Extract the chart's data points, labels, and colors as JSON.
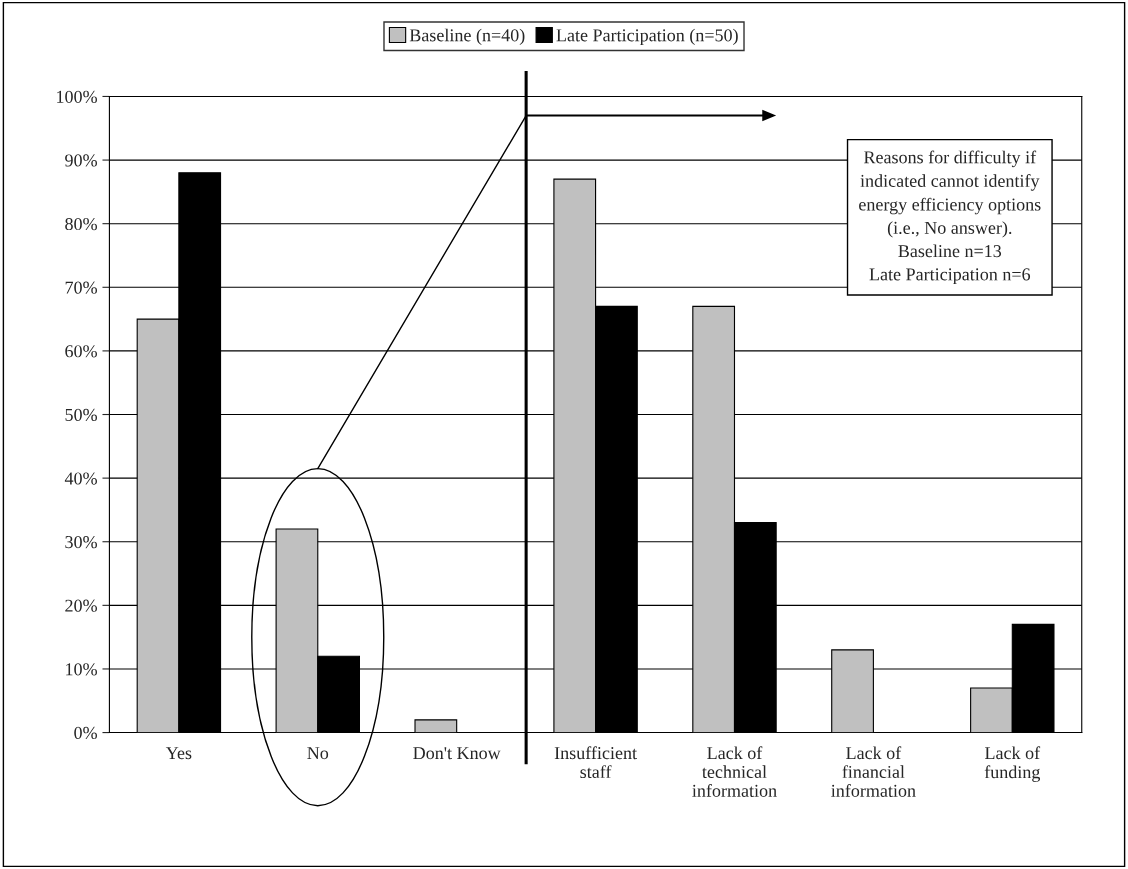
{
  "chart_data": {
    "type": "bar",
    "categories": [
      "Yes",
      "No",
      "Don't Know",
      "Insufficient\nstaff",
      "Lack of\ntechnical\ninformation",
      "Lack of\nfinancial\ninformation",
      "Lack of\nfunding"
    ],
    "series": [
      {
        "name": "Baseline (n=40)",
        "color": "#c0c0c0",
        "values": [
          65,
          32,
          2,
          87,
          67,
          13,
          7
        ]
      },
      {
        "name": "Late Participation (n=50)",
        "color": "#000000",
        "values": [
          88,
          12,
          0,
          67,
          33,
          0,
          17
        ]
      }
    ],
    "ylim": [
      0,
      100
    ],
    "yticks": [
      {
        "value": 0,
        "label": "0%"
      },
      {
        "value": 10,
        "label": "10%"
      },
      {
        "value": 20,
        "label": "20%"
      },
      {
        "value": 30,
        "label": "30%"
      },
      {
        "value": 40,
        "label": "40%"
      },
      {
        "value": 50,
        "label": "50%"
      },
      {
        "value": 60,
        "label": "60%"
      },
      {
        "value": 70,
        "label": "70%"
      },
      {
        "value": 80,
        "label": "80%"
      },
      {
        "value": 90,
        "label": "90%"
      },
      {
        "value": 100,
        "label": "100%"
      }
    ],
    "grid": "y",
    "legend": "top",
    "annotations": [
      "Reasons for difficulty if\nindicated cannot identify\nenergy efficiency options\n(i.e., No answer).\nBaseline n=13\nLate Participation n=6"
    ]
  }
}
